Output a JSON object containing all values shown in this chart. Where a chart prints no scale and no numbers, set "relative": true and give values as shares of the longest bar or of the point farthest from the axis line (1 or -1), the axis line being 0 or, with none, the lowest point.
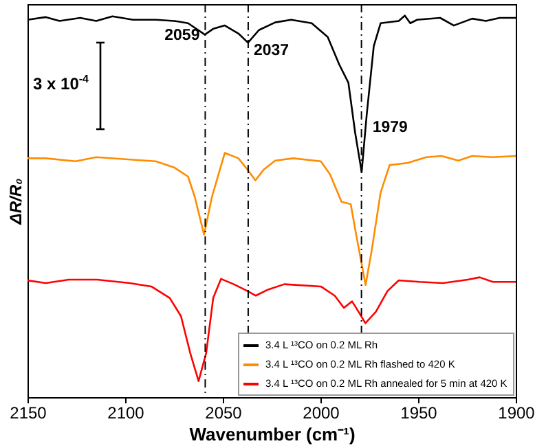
{
  "chart_data": {
    "type": "line",
    "relative": true,
    "xlabel": "Wavenumber (cm⁻¹)",
    "ylabel": "ΔR/R₀",
    "xlim": [
      2150,
      1900
    ],
    "xticks": [
      2150,
      2100,
      2050,
      2000,
      1950,
      1900
    ],
    "legend": "bottom right",
    "grid": false,
    "marker": "none",
    "line_style": "solid",
    "annotations": [
      {
        "text": "2059",
        "x": 2059,
        "y": 0.95
      },
      {
        "text": "2037",
        "x": 2037,
        "y": 0.929
      },
      {
        "text": "1979",
        "x": 1979,
        "y": 0.59
      },
      "3 x 10$^{-4}$"
    ],
    "ref_lines": [
      {
        "axis": "x",
        "value": 2059,
        "line_style": "dashed",
        "color": "#000000"
      },
      {
        "axis": "x",
        "value": 2037,
        "line_style": "dashed",
        "color": "#000000"
      },
      {
        "axis": "x",
        "value": 1979,
        "line_style": "dashed",
        "color": "#000000"
      }
    ],
    "series": [
      {
        "name": "3.4 L ¹³CO on 0.2 ML Rh",
        "color": "#000000",
        "x": [
          2150,
          2140.6,
          2133.6,
          2123,
          2114.8,
          2106.5,
          2096,
          2084.3,
          2074.9,
          2067.8,
          2059.2,
          2055,
          2049,
          2042,
          2037.1,
          2031.5,
          2023.2,
          2015,
          2004.5,
          1996.3,
          1990.4,
          1985.7,
          1982.2,
          1978.9,
          1976.3,
          1972.7,
          1969.2,
          1959.9,
          1956.8,
          1954,
          1950.5,
          1938.7,
          1931.7,
          1922.3,
          1915.3,
          1908.2,
          1900
        ],
        "values": [
          0.989,
          0.996,
          0.986,
          0.994,
          0.986,
          0.998,
          0.989,
          0.989,
          0.986,
          0.98,
          0.95,
          0.965,
          0.974,
          0.953,
          0.929,
          0.962,
          0.982,
          0.989,
          0.98,
          0.944,
          0.872,
          0.824,
          0.692,
          0.59,
          0.741,
          0.92,
          0.98,
          0.986,
          1.0,
          0.98,
          0.989,
          0.994,
          0.974,
          0.992,
          0.986,
          0.994,
          0.994
        ]
      },
      {
        "name": "3.4 L ¹³CO on 0.2 ML Rh flashed to 420 K",
        "color": "#ff8c00",
        "x": [
          2150,
          2140.6,
          2125.4,
          2114.8,
          2096,
          2084.3,
          2074.9,
          2067.8,
          2064.3,
          2059.6,
          2055.6,
          2049,
          2042,
          2037.3,
          2033.3,
          2029.1,
          2023.2,
          2013.9,
          1999.8,
          1995.1,
          1989.2,
          1984.5,
          1982.2,
          1976.9,
          1973.9,
          1969.2,
          1964.6,
          1955.2,
          1945.8,
          1938,
          1929.4,
          1922.3,
          1911.7,
          1900
        ],
        "values": [
          0.626,
          0.626,
          0.618,
          0.629,
          0.622,
          0.618,
          0.602,
          0.578,
          0.524,
          0.426,
          0.524,
          0.64,
          0.626,
          0.596,
          0.568,
          0.596,
          0.62,
          0.626,
          0.618,
          0.584,
          0.512,
          0.506,
          0.44,
          0.294,
          0.38,
          0.536,
          0.608,
          0.614,
          0.629,
          0.632,
          0.62,
          0.632,
          0.629,
          0.632
        ]
      },
      {
        "name": "3.4 L ¹³CO on 0.2 ML Rh annealed for 5 min at 420 K",
        "color": "#ff0000",
        "x": [
          2150,
          2140.6,
          2128.9,
          2114.3,
          2097.7,
          2086.6,
          2077.2,
          2071.4,
          2066.7,
          2062.4,
          2058.5,
          2054.9,
          2050.9,
          2044.4,
          2037.3,
          2033.1,
          2026.8,
          2018.5,
          1999.8,
          1992.7,
          1988,
          1983.8,
          1979.8,
          1977,
          1971.6,
          1965.7,
          1959.9,
          1949.2,
          1937.3,
          1924.6,
          1918.5,
          1911.7,
          1900
        ],
        "values": [
          0.306,
          0.299,
          0.308,
          0.308,
          0.299,
          0.29,
          0.26,
          0.212,
          0.116,
          0.042,
          0.116,
          0.26,
          0.31,
          0.296,
          0.278,
          0.266,
          0.282,
          0.296,
          0.29,
          0.266,
          0.234,
          0.251,
          0.218,
          0.194,
          0.224,
          0.278,
          0.306,
          0.302,
          0.299,
          0.308,
          0.314,
          0.302,
          0.302
        ]
      }
    ]
  }
}
